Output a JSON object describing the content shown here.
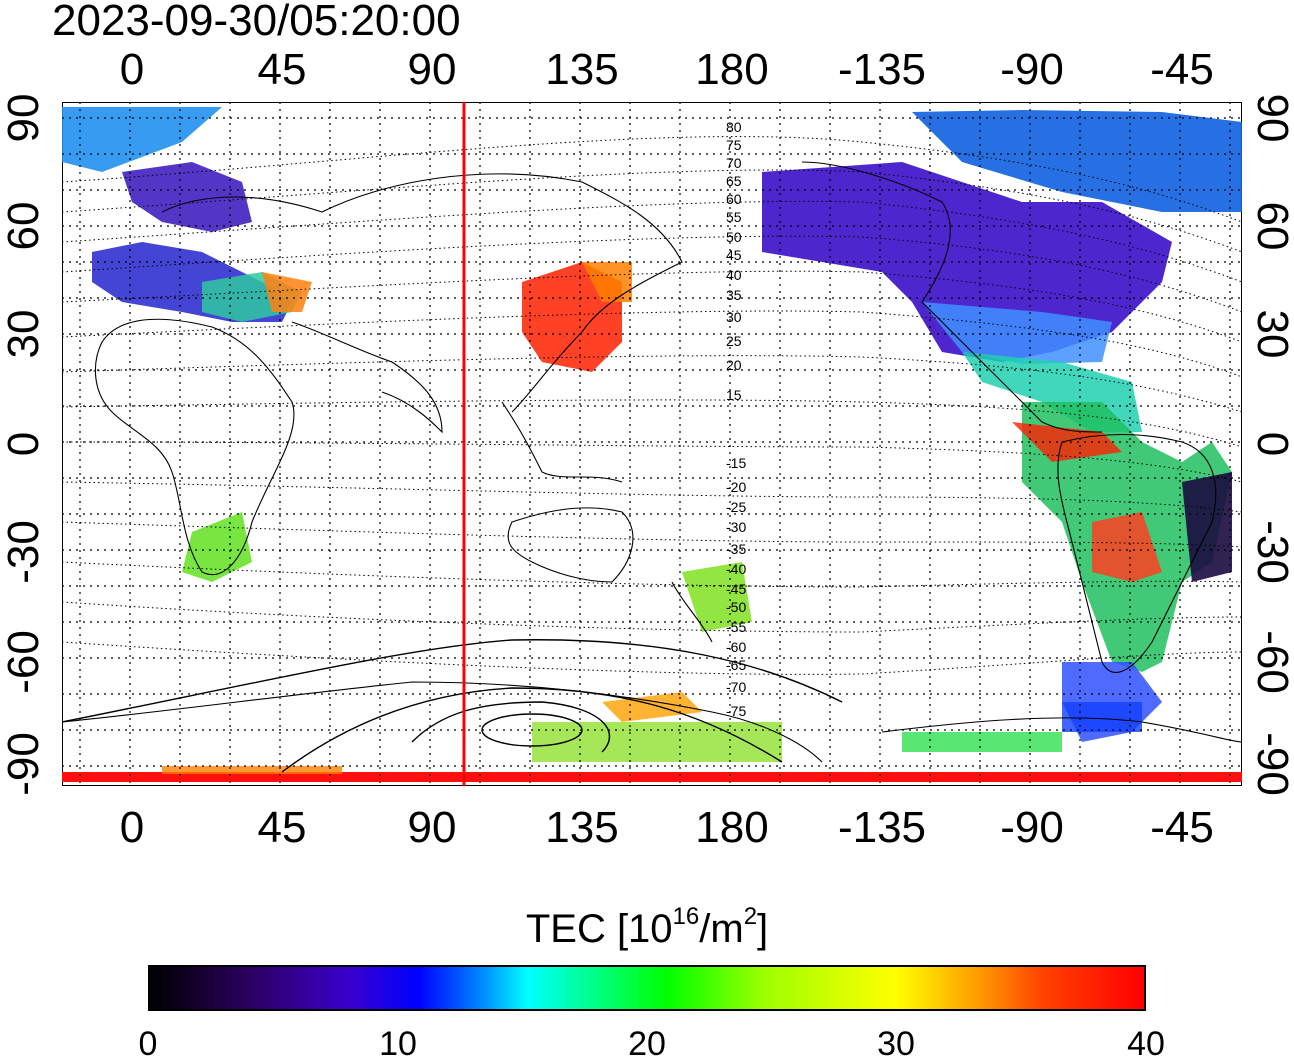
{
  "title": "2023-09-30/05:20:00",
  "map": {
    "x_ticks": [
      "0",
      "45",
      "90",
      "135",
      "180",
      "-135",
      "-90",
      "-45"
    ],
    "y_ticks": [
      "90",
      "60",
      "30",
      "0",
      "-30",
      "-60",
      "-90"
    ],
    "meridian_line_lon": 100,
    "contour_labels": [
      "80",
      "75",
      "70",
      "65",
      "60",
      "55",
      "50",
      "45",
      "40",
      "35",
      "30",
      "25",
      "20",
      "15",
      "-15",
      "-20",
      "-25",
      "-30",
      "-35",
      "-40",
      "-45",
      "-50",
      "-55",
      "-60",
      "-65",
      "-70",
      "-75"
    ],
    "colors": {
      "marker_line": "#ff0000",
      "grid": "#000000",
      "coast": "#000000"
    }
  },
  "colorbar": {
    "title_prefix": "TEC  [10",
    "title_exp1": "16",
    "title_mid": "/m",
    "title_exp2": "2",
    "title_suffix": "]",
    "ticks": [
      "0",
      "10",
      "20",
      "30",
      "40"
    ],
    "min": 0,
    "max": 40
  }
}
